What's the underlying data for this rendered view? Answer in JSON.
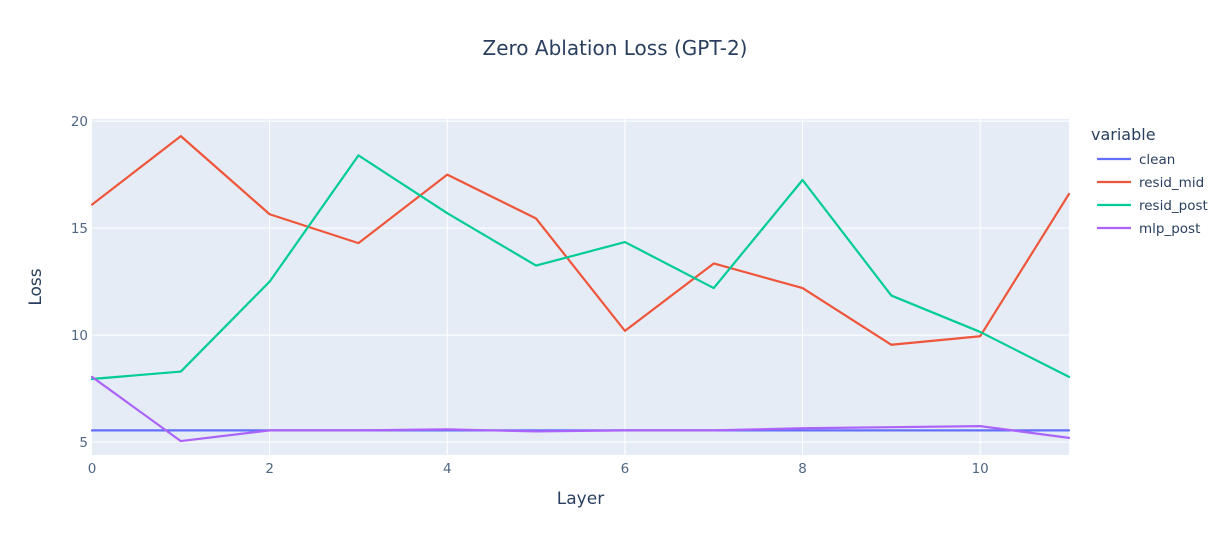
{
  "chart_data": {
    "type": "line",
    "title": "Zero Ablation Loss (GPT-2)",
    "xlabel": "Layer",
    "ylabel": "Loss",
    "x": [
      0,
      1,
      2,
      3,
      4,
      5,
      6,
      7,
      8,
      9,
      10,
      11
    ],
    "xlim": [
      0,
      11
    ],
    "ylim": [
      4.4,
      20.1
    ],
    "x_ticks": [
      0,
      2,
      4,
      6,
      8,
      10
    ],
    "y_ticks": [
      5,
      10,
      15,
      20
    ],
    "grid": true,
    "legend_title": "variable",
    "legend_position": "right",
    "series": [
      {
        "name": "clean",
        "color": "#636efa",
        "values": [
          5.55,
          5.55,
          5.55,
          5.55,
          5.55,
          5.55,
          5.55,
          5.55,
          5.55,
          5.55,
          5.55,
          5.55
        ]
      },
      {
        "name": "resid_mid",
        "color": "#ef553b",
        "values": [
          16.1,
          19.3,
          15.65,
          14.3,
          17.5,
          15.45,
          10.2,
          13.35,
          12.2,
          9.55,
          9.95,
          16.6
        ]
      },
      {
        "name": "resid_post",
        "color": "#00cc96",
        "values": [
          7.95,
          8.3,
          12.5,
          18.4,
          15.7,
          13.25,
          14.35,
          12.2,
          17.25,
          11.85,
          10.15,
          8.05
        ]
      },
      {
        "name": "mlp_post",
        "color": "#ab63fa",
        "values": [
          8.05,
          5.05,
          5.55,
          5.55,
          5.6,
          5.5,
          5.55,
          5.55,
          5.65,
          5.7,
          5.75,
          5.2
        ]
      }
    ]
  }
}
